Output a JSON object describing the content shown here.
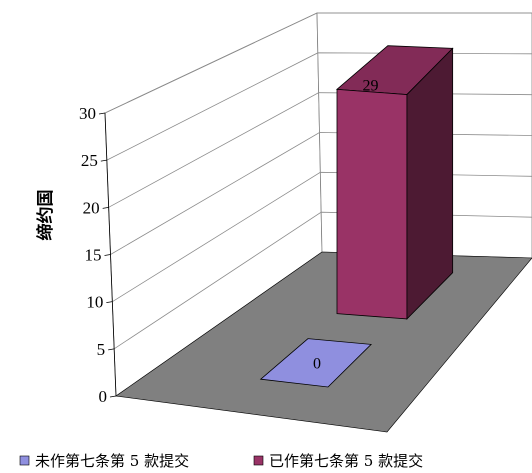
{
  "chart_data": {
    "type": "bar",
    "style": "3d-column",
    "ylabel": "缔约国",
    "ylim": [
      0,
      30
    ],
    "yticks": [
      "0",
      "5",
      "10",
      "15",
      "20",
      "25",
      "30"
    ],
    "series": [
      {
        "name": "未作第七条第 5 款提交",
        "value": 0,
        "label": "0",
        "color": "#8f8fdf"
      },
      {
        "name": "已作第七条第 5 款提交",
        "value": 29,
        "label": "29",
        "color": "#993366"
      }
    ],
    "floor_color": "#808080",
    "wall_color": "#ffffff",
    "grid": true,
    "legend_position": "bottom"
  }
}
